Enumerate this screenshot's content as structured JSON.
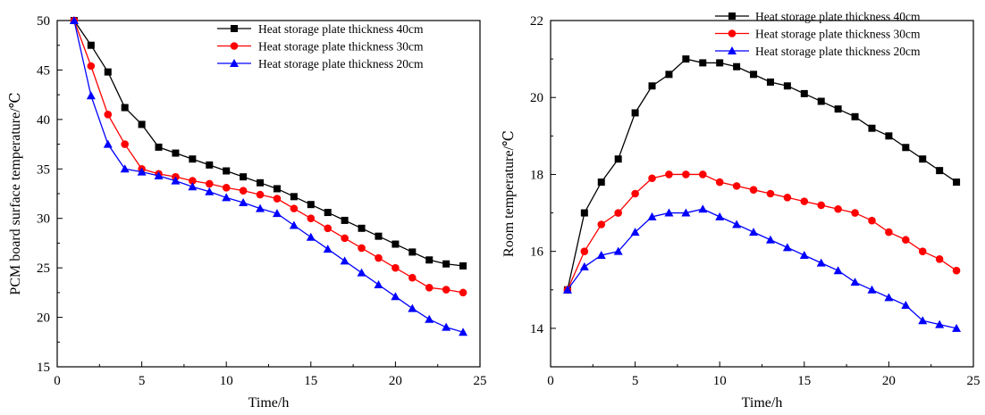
{
  "chart_data": [
    {
      "type": "line",
      "title": "",
      "xlabel": "Time/h",
      "ylabel": "PCM board surface temperature/℃",
      "xlim": [
        0,
        25
      ],
      "ylim": [
        15,
        50
      ],
      "xticks": [
        0,
        5,
        10,
        15,
        20,
        25
      ],
      "yticks": [
        15,
        20,
        25,
        30,
        35,
        40,
        45,
        50
      ],
      "grid": false,
      "legend_position": "top-right",
      "x": [
        1,
        2,
        3,
        4,
        5,
        6,
        7,
        8,
        9,
        10,
        11,
        12,
        13,
        14,
        15,
        16,
        17,
        18,
        19,
        20,
        21,
        22,
        23,
        24
      ],
      "series": [
        {
          "name": "Heat storage plate thickness 40cm",
          "color": "#000000",
          "marker": "square",
          "values": [
            50.0,
            47.5,
            44.8,
            41.2,
            39.5,
            37.2,
            36.6,
            36.0,
            35.4,
            34.8,
            34.2,
            33.6,
            33.0,
            32.2,
            31.4,
            30.6,
            29.8,
            29.0,
            28.2,
            27.4,
            26.6,
            25.8,
            25.4,
            25.2
          ]
        },
        {
          "name": "Heat storage plate thickness 30cm",
          "color": "#ff0000",
          "marker": "circle",
          "values": [
            50.0,
            45.4,
            40.5,
            37.5,
            35.0,
            34.5,
            34.2,
            33.8,
            33.5,
            33.1,
            32.8,
            32.4,
            32.0,
            31.0,
            30.0,
            29.0,
            28.0,
            27.0,
            26.0,
            25.0,
            24.0,
            23.0,
            22.8,
            22.5
          ]
        },
        {
          "name": "Heat storage plate thickness 20cm",
          "color": "#0000ff",
          "marker": "triangle",
          "values": [
            50.0,
            42.4,
            37.5,
            35.0,
            34.7,
            34.3,
            33.8,
            33.2,
            32.7,
            32.1,
            31.6,
            31.0,
            30.5,
            29.3,
            28.1,
            26.9,
            25.7,
            24.5,
            23.3,
            22.1,
            20.9,
            19.8,
            19.0,
            18.5
          ]
        }
      ]
    },
    {
      "type": "line",
      "title": "",
      "xlabel": "Time/h",
      "ylabel": "Room temperature/℃",
      "xlim": [
        0,
        25
      ],
      "ylim": [
        13,
        22
      ],
      "xticks": [
        0,
        5,
        10,
        15,
        20,
        25
      ],
      "yticks": [
        14,
        16,
        18,
        20,
        22
      ],
      "grid": false,
      "legend_position": "top-right",
      "x": [
        1,
        2,
        3,
        4,
        5,
        6,
        7,
        8,
        9,
        10,
        11,
        12,
        13,
        14,
        15,
        16,
        17,
        18,
        19,
        20,
        21,
        22,
        23,
        24
      ],
      "series": [
        {
          "name": "Heat storage plate thickness 40cm",
          "color": "#000000",
          "marker": "square",
          "values": [
            15.0,
            17.0,
            17.8,
            18.4,
            19.6,
            20.3,
            20.6,
            21.0,
            20.9,
            20.9,
            20.8,
            20.6,
            20.4,
            20.3,
            20.1,
            19.9,
            19.7,
            19.5,
            19.2,
            19.0,
            18.7,
            18.4,
            18.1,
            17.8
          ]
        },
        {
          "name": "Heat storage plate thickness 30cm",
          "color": "#ff0000",
          "marker": "circle",
          "values": [
            15.0,
            16.0,
            16.7,
            17.0,
            17.5,
            17.9,
            18.0,
            18.0,
            18.0,
            17.8,
            17.7,
            17.6,
            17.5,
            17.4,
            17.3,
            17.2,
            17.1,
            17.0,
            16.8,
            16.5,
            16.3,
            16.0,
            15.8,
            15.5
          ]
        },
        {
          "name": "Heat storage plate thickness 20cm",
          "color": "#0000ff",
          "marker": "triangle",
          "values": [
            15.0,
            15.6,
            15.9,
            16.0,
            16.5,
            16.9,
            17.0,
            17.0,
            17.1,
            16.9,
            16.7,
            16.5,
            16.3,
            16.1,
            15.9,
            15.7,
            15.5,
            15.2,
            15.0,
            14.8,
            14.6,
            14.2,
            14.1,
            14.0
          ]
        }
      ]
    }
  ]
}
